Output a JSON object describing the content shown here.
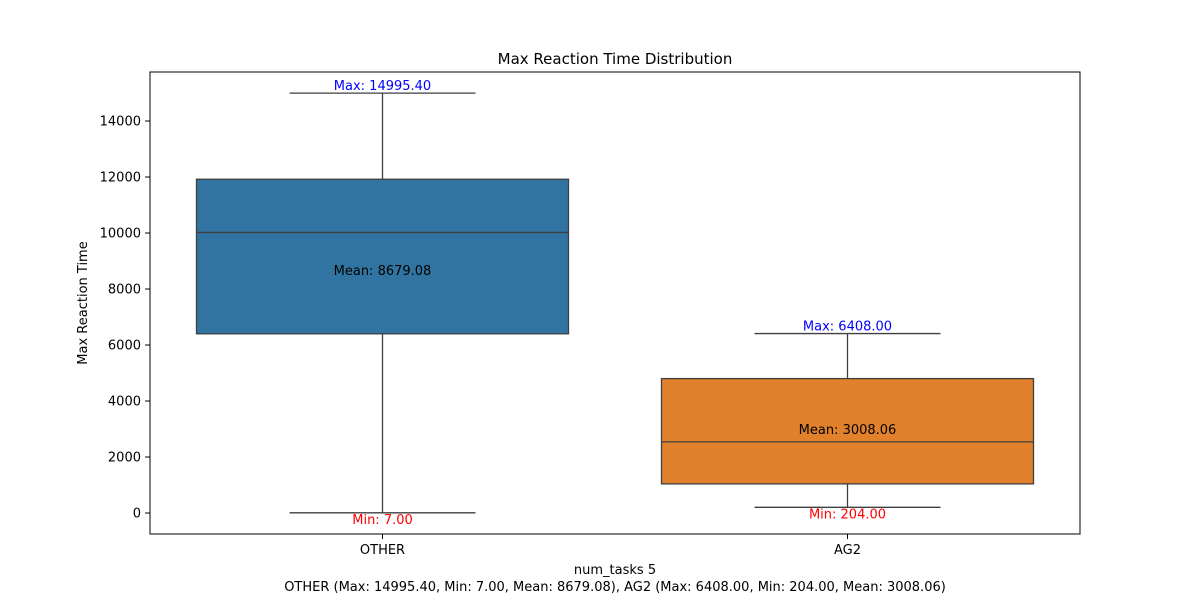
{
  "chart_data": {
    "type": "box",
    "title": "Max Reaction Time Distribution",
    "xlabel": "num_tasks 5",
    "ylabel": "Max Reaction Time",
    "footer": "OTHER (Max: 14995.40, Min: 7.00, Mean: 8679.08), AG2 (Max: 6408.00, Min: 204.00, Mean: 3008.06)",
    "ylim": [
      -750,
      15750
    ],
    "yticks": [
      0,
      2000,
      4000,
      6000,
      8000,
      10000,
      12000,
      14000
    ],
    "grid": false,
    "categories": [
      "OTHER",
      "AG2"
    ],
    "boxes": [
      {
        "category": "OTHER",
        "color": "#3274a1",
        "min": 7.0,
        "q1": 6400,
        "median": 10020,
        "q3": 11920,
        "max": 14995.4,
        "mean": 8679.08,
        "max_label": "Max: 14995.40",
        "min_label": "Min: 7.00",
        "mean_label": "Mean: 8679.08"
      },
      {
        "category": "AG2",
        "color": "#e1812c",
        "min": 204.0,
        "q1": 1040,
        "median": 2540,
        "q3": 4800,
        "max": 6408.0,
        "mean": 3008.06,
        "max_label": "Max: 6408.00",
        "min_label": "Min: 204.00",
        "mean_label": "Mean: 3008.06"
      }
    ],
    "label_colors": {
      "max": "#0000ff",
      "min": "#ff0000",
      "mean": "#000000"
    },
    "edge_color": "#3f3f3f"
  }
}
